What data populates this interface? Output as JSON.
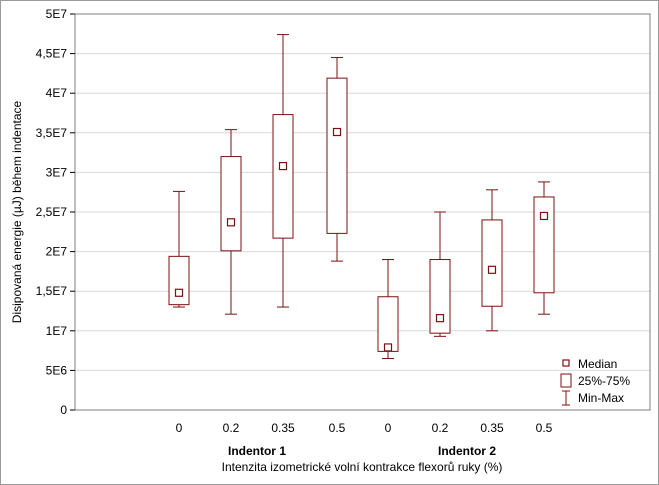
{
  "chart_data": {
    "type": "box",
    "xlabel": "Intenzita izometrické volní kontrakce flexorů ruky (%)",
    "ylabel": "Disipovaná energie (µJ) během indentace",
    "ylim": [
      0,
      50000000
    ],
    "y_ticks": [
      0,
      5000000,
      10000000,
      15000000,
      20000000,
      25000000,
      30000000,
      35000000,
      40000000,
      45000000,
      50000000
    ],
    "y_tick_labels": [
      "0",
      "5E6",
      "1E7",
      "1,5E7",
      "2E7",
      "2,5E7",
      "3E7",
      "3,5E7",
      "4E7",
      "4,5E7",
      "5E7"
    ],
    "grid": true,
    "legend_position": "bottom-right",
    "legend": [
      "Median",
      "25%-75%",
      "Min-Max"
    ],
    "groups": [
      "Indentor 1",
      "Indentor 2"
    ],
    "categories": [
      "0",
      "0.2",
      "0.35",
      "0.5",
      "0",
      "0.2",
      "0.35",
      "0.5"
    ],
    "boxes": [
      {
        "group": "Indentor 1",
        "category": "0",
        "min": 13000000,
        "q1": 13300000,
        "median": 14800000,
        "q3": 19400000,
        "max": 27600000
      },
      {
        "group": "Indentor 1",
        "category": "0.2",
        "min": 12100000,
        "q1": 20100000,
        "median": 23700000,
        "q3": 32000000,
        "max": 35400000
      },
      {
        "group": "Indentor 1",
        "category": "0.35",
        "min": 13000000,
        "q1": 21700000,
        "median": 30800000,
        "q3": 37300000,
        "max": 47400000
      },
      {
        "group": "Indentor 1",
        "category": "0.5",
        "min": 18800000,
        "q1": 22300000,
        "median": 35100000,
        "q3": 41900000,
        "max": 44500000
      },
      {
        "group": "Indentor 2",
        "category": "0",
        "min": 6500000,
        "q1": 7400000,
        "median": 7900000,
        "q3": 14300000,
        "max": 19000000
      },
      {
        "group": "Indentor 2",
        "category": "0.2",
        "min": 9300000,
        "q1": 9700000,
        "median": 11600000,
        "q3": 19000000,
        "max": 25000000
      },
      {
        "group": "Indentor 2",
        "category": "0.35",
        "min": 10000000,
        "q1": 13100000,
        "median": 17700000,
        "q3": 24000000,
        "max": 27800000
      },
      {
        "group": "Indentor 2",
        "category": "0.5",
        "min": 12100000,
        "q1": 14800000,
        "median": 24500000,
        "q3": 26900000,
        "max": 28800000
      }
    ],
    "color": "#7b1010"
  }
}
